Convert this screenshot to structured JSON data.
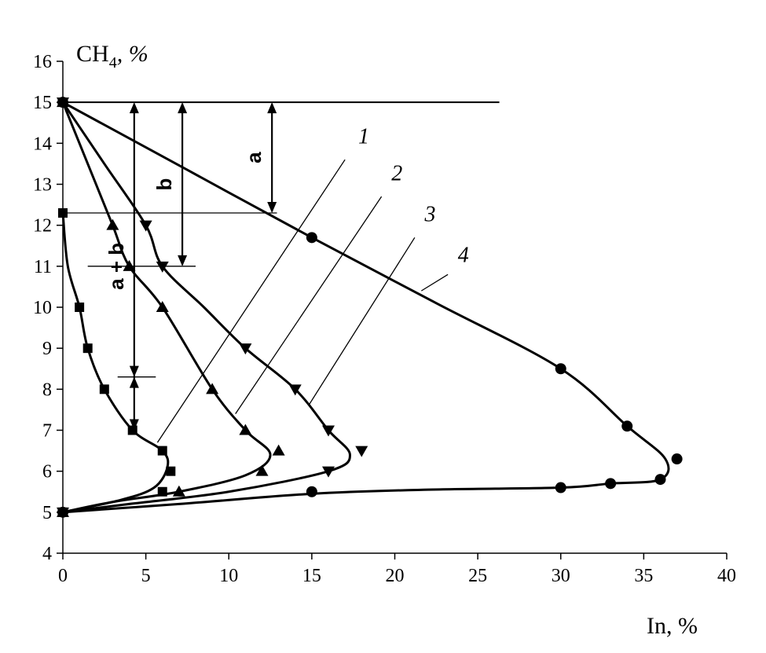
{
  "chart_data": {
    "type": "scatter",
    "title": "",
    "xlabel": "In, %",
    "ylabel_main": "CH",
    "ylabel_sub": "4",
    "ylabel_tail": ", %",
    "xlim": [
      0,
      40
    ],
    "ylim": [
      4,
      16
    ],
    "xticks": [
      "0",
      "5",
      "10",
      "15",
      "20",
      "25",
      "30",
      "35",
      "40"
    ],
    "yticks": [
      "4",
      "5",
      "6",
      "7",
      "8",
      "9",
      "10",
      "11",
      "12",
      "13",
      "14",
      "15",
      "16"
    ],
    "grid": false,
    "series": [
      {
        "name": "1",
        "marker": "square",
        "points": [
          [
            0,
            12.3
          ],
          [
            1,
            10
          ],
          [
            1.5,
            9
          ],
          [
            2.5,
            8
          ],
          [
            4.2,
            7
          ],
          [
            6,
            6.5
          ],
          [
            6.5,
            6
          ],
          [
            6,
            5.5
          ],
          [
            0,
            5
          ]
        ],
        "curve": [
          [
            0,
            12.3
          ],
          [
            0.3,
            11
          ],
          [
            1,
            10
          ],
          [
            1.5,
            9
          ],
          [
            2.5,
            8
          ],
          [
            4.2,
            7
          ],
          [
            6,
            6.5
          ],
          [
            6.3,
            6.1
          ],
          [
            5.5,
            5.6
          ],
          [
            3.5,
            5.3
          ],
          [
            0,
            5
          ]
        ]
      },
      {
        "name": "2",
        "marker": "triangle-up",
        "points": [
          [
            3,
            12
          ],
          [
            4,
            11
          ],
          [
            6,
            10
          ],
          [
            9,
            8
          ],
          [
            11,
            7
          ],
          [
            13,
            6.5
          ],
          [
            12,
            6
          ],
          [
            7,
            5.5
          ],
          [
            0,
            15
          ],
          [
            0,
            5
          ]
        ],
        "curve": [
          [
            0,
            15
          ],
          [
            1.5,
            13.5
          ],
          [
            3,
            12
          ],
          [
            4,
            11
          ],
          [
            6,
            10
          ],
          [
            9,
            8
          ],
          [
            11,
            7
          ],
          [
            12.5,
            6.4
          ],
          [
            11,
            5.9
          ],
          [
            7,
            5.5
          ],
          [
            3,
            5.25
          ],
          [
            0,
            5
          ]
        ]
      },
      {
        "name": "3",
        "marker": "triangle-down",
        "points": [
          [
            5,
            12
          ],
          [
            6,
            11
          ],
          [
            11,
            9
          ],
          [
            14,
            8
          ],
          [
            16,
            7
          ],
          [
            18,
            6.5
          ],
          [
            16,
            6
          ],
          [
            0,
            15
          ],
          [
            0,
            5
          ]
        ],
        "curve": [
          [
            0,
            15
          ],
          [
            2.5,
            13.5
          ],
          [
            5,
            12
          ],
          [
            6,
            11
          ],
          [
            8.5,
            10
          ],
          [
            11,
            9
          ],
          [
            14,
            8
          ],
          [
            16,
            7
          ],
          [
            17.3,
            6.4
          ],
          [
            16,
            6
          ],
          [
            10,
            5.5
          ],
          [
            4,
            5.2
          ],
          [
            0,
            5
          ]
        ]
      },
      {
        "name": "4",
        "marker": "circle",
        "points": [
          [
            15,
            11.7
          ],
          [
            30,
            8.5
          ],
          [
            34,
            7.1
          ],
          [
            37,
            6.3
          ],
          [
            36,
            5.8
          ],
          [
            33,
            5.7
          ],
          [
            30,
            5.6
          ],
          [
            15,
            5.5
          ],
          [
            0,
            15
          ],
          [
            0,
            5
          ]
        ],
        "curve": [
          [
            0,
            15
          ],
          [
            7.5,
            13.35
          ],
          [
            15,
            11.7
          ],
          [
            22.5,
            10.1
          ],
          [
            30,
            8.5
          ],
          [
            34,
            7.1
          ],
          [
            36.3,
            6.3
          ],
          [
            36,
            5.8
          ],
          [
            33,
            5.7
          ],
          [
            30,
            5.6
          ],
          [
            22,
            5.55
          ],
          [
            15,
            5.45
          ],
          [
            7,
            5.2
          ],
          [
            0,
            5
          ]
        ]
      }
    ],
    "reference_lines": [
      {
        "y": 15,
        "x_from": 0,
        "x_to": 26.3
      },
      {
        "y": 12.3,
        "x_from": 0,
        "x_to": 12.9
      },
      {
        "y": 11,
        "x_from": 1.5,
        "x_to": 8.0
      },
      {
        "y": 8.3,
        "x_from": 3.3,
        "x_to": 5.6
      }
    ],
    "annotations": [
      {
        "text": "a",
        "x": 12.6,
        "y_from": 12.3,
        "y_to": 15
      },
      {
        "text": "b",
        "x": 7.2,
        "y_from": 11,
        "y_to": 15
      },
      {
        "text": "a + b",
        "x": 4.3,
        "y_from": 7,
        "y_to": 15
      }
    ],
    "curve_labels": [
      {
        "text": "1",
        "x": 17.8,
        "y": 14.0,
        "line_from": [
          5.7,
          6.7
        ],
        "line_to": [
          17.0,
          13.6
        ]
      },
      {
        "text": "2",
        "x": 19.8,
        "y": 13.1,
        "line_from": [
          10.4,
          7.4
        ],
        "line_to": [
          19.2,
          12.7
        ]
      },
      {
        "text": "3",
        "x": 21.8,
        "y": 12.1,
        "line_from": [
          14.8,
          7.6
        ],
        "line_to": [
          21.2,
          11.7
        ]
      },
      {
        "text": "4",
        "x": 23.8,
        "y": 11.1,
        "line_from": [
          21.6,
          10.4
        ],
        "line_to": [
          23.2,
          10.8
        ]
      }
    ]
  }
}
